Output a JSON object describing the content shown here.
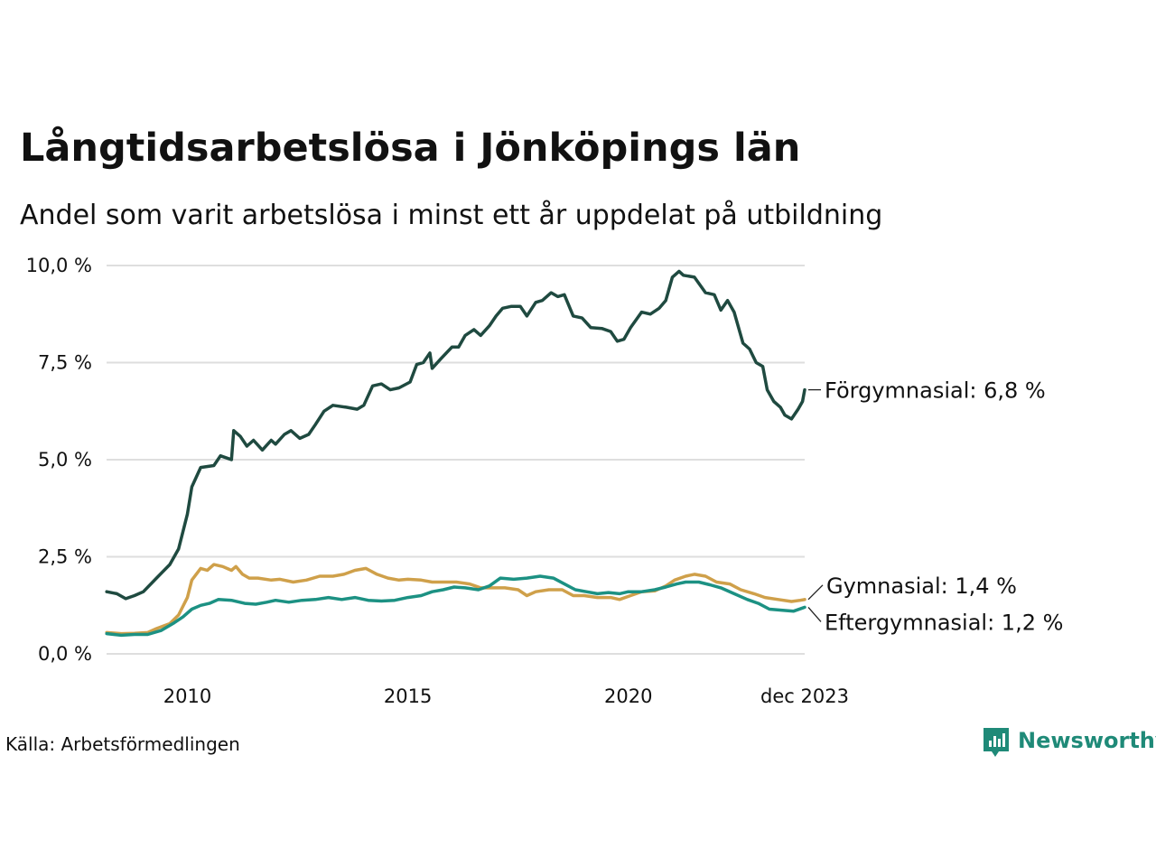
{
  "chart_data": {
    "type": "line",
    "title": "Långtidsarbetslösa i Jönköpings län",
    "subtitle": "Andel som varit arbetslösa i minst ett år uppdelat på utbildning",
    "source": "Källa: Arbetsförmedlingen",
    "brand": "Newsworthy",
    "ylim": [
      0,
      10
    ],
    "xlim": [
      2008.1667,
      2024.0
    ],
    "yticks": [
      {
        "value": 10,
        "label": "10,0 %"
      },
      {
        "value": 7.5,
        "label": "7,5 %"
      },
      {
        "value": 5,
        "label": "5,0 %"
      },
      {
        "value": 2.5,
        "label": "2,5 %"
      },
      {
        "value": 0,
        "label": "0,0 %"
      }
    ],
    "xticks": [
      {
        "value": 2010,
        "label": "2010"
      },
      {
        "value": 2015,
        "label": "2015"
      },
      {
        "value": 2020,
        "label": "2020"
      },
      {
        "value": 2024,
        "label": "dec 2023"
      }
    ],
    "series": [
      {
        "name": "Förgymnasial",
        "end_label": "Förgymnasial: 6,8 %",
        "color": "#1f4a40",
        "points": [
          [
            2008.17,
            1.6
          ],
          [
            2008.4,
            1.55
          ],
          [
            2008.6,
            1.42
          ],
          [
            2008.8,
            1.5
          ],
          [
            2009.0,
            1.6
          ],
          [
            2009.3,
            1.95
          ],
          [
            2009.6,
            2.3
          ],
          [
            2009.8,
            2.7
          ],
          [
            2010.0,
            3.6
          ],
          [
            2010.1,
            4.3
          ],
          [
            2010.3,
            4.8
          ],
          [
            2010.6,
            4.85
          ],
          [
            2010.75,
            5.1
          ],
          [
            2011.0,
            5.0
          ],
          [
            2011.05,
            5.75
          ],
          [
            2011.2,
            5.6
          ],
          [
            2011.35,
            5.35
          ],
          [
            2011.5,
            5.5
          ],
          [
            2011.7,
            5.25
          ],
          [
            2011.9,
            5.5
          ],
          [
            2012.0,
            5.4
          ],
          [
            2012.2,
            5.65
          ],
          [
            2012.35,
            5.75
          ],
          [
            2012.55,
            5.55
          ],
          [
            2012.75,
            5.65
          ],
          [
            2012.9,
            5.9
          ],
          [
            2013.1,
            6.25
          ],
          [
            2013.3,
            6.4
          ],
          [
            2013.6,
            6.35
          ],
          [
            2013.85,
            6.3
          ],
          [
            2014.0,
            6.4
          ],
          [
            2014.2,
            6.9
          ],
          [
            2014.4,
            6.95
          ],
          [
            2014.6,
            6.8
          ],
          [
            2014.8,
            6.85
          ],
          [
            2015.05,
            7.0
          ],
          [
            2015.2,
            7.45
          ],
          [
            2015.35,
            7.5
          ],
          [
            2015.5,
            7.75
          ],
          [
            2015.55,
            7.35
          ],
          [
            2015.75,
            7.6
          ],
          [
            2016.0,
            7.9
          ],
          [
            2016.15,
            7.9
          ],
          [
            2016.3,
            8.2
          ],
          [
            2016.5,
            8.35
          ],
          [
            2016.65,
            8.2
          ],
          [
            2016.85,
            8.45
          ],
          [
            2017.0,
            8.7
          ],
          [
            2017.15,
            8.9
          ],
          [
            2017.35,
            8.95
          ],
          [
            2017.55,
            8.95
          ],
          [
            2017.7,
            8.7
          ],
          [
            2017.9,
            9.05
          ],
          [
            2018.05,
            9.1
          ],
          [
            2018.25,
            9.3
          ],
          [
            2018.4,
            9.2
          ],
          [
            2018.55,
            9.25
          ],
          [
            2018.75,
            8.7
          ],
          [
            2018.95,
            8.65
          ],
          [
            2019.15,
            8.4
          ],
          [
            2019.4,
            8.38
          ],
          [
            2019.6,
            8.3
          ],
          [
            2019.75,
            8.05
          ],
          [
            2019.9,
            8.1
          ],
          [
            2020.05,
            8.4
          ],
          [
            2020.3,
            8.8
          ],
          [
            2020.5,
            8.75
          ],
          [
            2020.7,
            8.9
          ],
          [
            2020.85,
            9.1
          ],
          [
            2021.0,
            9.7
          ],
          [
            2021.15,
            9.85
          ],
          [
            2021.25,
            9.75
          ],
          [
            2021.5,
            9.7
          ],
          [
            2021.75,
            9.3
          ],
          [
            2021.95,
            9.25
          ],
          [
            2022.1,
            8.85
          ],
          [
            2022.25,
            9.1
          ],
          [
            2022.4,
            8.8
          ],
          [
            2022.6,
            8.0
          ],
          [
            2022.75,
            7.85
          ],
          [
            2022.9,
            7.5
          ],
          [
            2023.05,
            7.4
          ],
          [
            2023.15,
            6.8
          ],
          [
            2023.3,
            6.5
          ],
          [
            2023.45,
            6.35
          ],
          [
            2023.55,
            6.15
          ],
          [
            2023.7,
            6.05
          ],
          [
            2023.85,
            6.3
          ],
          [
            2023.95,
            6.5
          ],
          [
            2024.0,
            6.8
          ]
        ]
      },
      {
        "name": "Gymnasial",
        "end_label": "Gymnasial: 1,4 %",
        "color": "#cfa04a",
        "points": [
          [
            2008.17,
            0.55
          ],
          [
            2008.5,
            0.52
          ],
          [
            2008.8,
            0.53
          ],
          [
            2009.1,
            0.55
          ],
          [
            2009.3,
            0.65
          ],
          [
            2009.6,
            0.78
          ],
          [
            2009.8,
            1.0
          ],
          [
            2010.0,
            1.45
          ],
          [
            2010.1,
            1.9
          ],
          [
            2010.3,
            2.2
          ],
          [
            2010.45,
            2.15
          ],
          [
            2010.6,
            2.3
          ],
          [
            2010.8,
            2.25
          ],
          [
            2011.0,
            2.15
          ],
          [
            2011.1,
            2.25
          ],
          [
            2011.25,
            2.05
          ],
          [
            2011.4,
            1.95
          ],
          [
            2011.6,
            1.95
          ],
          [
            2011.9,
            1.9
          ],
          [
            2012.1,
            1.92
          ],
          [
            2012.4,
            1.85
          ],
          [
            2012.7,
            1.9
          ],
          [
            2013.0,
            2.0
          ],
          [
            2013.3,
            2.0
          ],
          [
            2013.55,
            2.05
          ],
          [
            2013.8,
            2.15
          ],
          [
            2014.05,
            2.2
          ],
          [
            2014.3,
            2.05
          ],
          [
            2014.55,
            1.95
          ],
          [
            2014.8,
            1.9
          ],
          [
            2015.0,
            1.92
          ],
          [
            2015.3,
            1.9
          ],
          [
            2015.55,
            1.85
          ],
          [
            2015.8,
            1.85
          ],
          [
            2016.1,
            1.85
          ],
          [
            2016.4,
            1.8
          ],
          [
            2016.65,
            1.7
          ],
          [
            2016.9,
            1.7
          ],
          [
            2017.2,
            1.7
          ],
          [
            2017.5,
            1.65
          ],
          [
            2017.7,
            1.5
          ],
          [
            2017.9,
            1.6
          ],
          [
            2018.2,
            1.65
          ],
          [
            2018.5,
            1.65
          ],
          [
            2018.75,
            1.5
          ],
          [
            2019.0,
            1.5
          ],
          [
            2019.3,
            1.45
          ],
          [
            2019.6,
            1.45
          ],
          [
            2019.8,
            1.4
          ],
          [
            2020.05,
            1.5
          ],
          [
            2020.3,
            1.6
          ],
          [
            2020.6,
            1.62
          ],
          [
            2020.85,
            1.75
          ],
          [
            2021.05,
            1.9
          ],
          [
            2021.3,
            2.0
          ],
          [
            2021.5,
            2.05
          ],
          [
            2021.75,
            2.0
          ],
          [
            2022.0,
            1.85
          ],
          [
            2022.3,
            1.8
          ],
          [
            2022.55,
            1.65
          ],
          [
            2022.85,
            1.55
          ],
          [
            2023.1,
            1.45
          ],
          [
            2023.4,
            1.4
          ],
          [
            2023.7,
            1.35
          ],
          [
            2023.9,
            1.38
          ],
          [
            2024.0,
            1.4
          ]
        ]
      },
      {
        "name": "Eftergymnasial",
        "end_label": "Eftergymnasial: 1,2 %",
        "color": "#1c9183",
        "points": [
          [
            2008.17,
            0.52
          ],
          [
            2008.5,
            0.48
          ],
          [
            2008.8,
            0.5
          ],
          [
            2009.1,
            0.5
          ],
          [
            2009.4,
            0.6
          ],
          [
            2009.7,
            0.8
          ],
          [
            2009.9,
            0.95
          ],
          [
            2010.1,
            1.15
          ],
          [
            2010.3,
            1.25
          ],
          [
            2010.5,
            1.3
          ],
          [
            2010.7,
            1.4
          ],
          [
            2011.0,
            1.38
          ],
          [
            2011.3,
            1.3
          ],
          [
            2011.55,
            1.28
          ],
          [
            2011.8,
            1.33
          ],
          [
            2012.0,
            1.38
          ],
          [
            2012.3,
            1.33
          ],
          [
            2012.6,
            1.38
          ],
          [
            2012.9,
            1.4
          ],
          [
            2013.2,
            1.45
          ],
          [
            2013.5,
            1.4
          ],
          [
            2013.8,
            1.45
          ],
          [
            2014.1,
            1.38
          ],
          [
            2014.4,
            1.36
          ],
          [
            2014.7,
            1.38
          ],
          [
            2015.0,
            1.45
          ],
          [
            2015.3,
            1.5
          ],
          [
            2015.55,
            1.6
          ],
          [
            2015.8,
            1.65
          ],
          [
            2016.05,
            1.72
          ],
          [
            2016.3,
            1.7
          ],
          [
            2016.6,
            1.65
          ],
          [
            2016.85,
            1.75
          ],
          [
            2017.1,
            1.95
          ],
          [
            2017.4,
            1.92
          ],
          [
            2017.7,
            1.95
          ],
          [
            2018.0,
            2.0
          ],
          [
            2018.3,
            1.95
          ],
          [
            2018.55,
            1.8
          ],
          [
            2018.8,
            1.65
          ],
          [
            2019.05,
            1.6
          ],
          [
            2019.3,
            1.55
          ],
          [
            2019.55,
            1.58
          ],
          [
            2019.8,
            1.55
          ],
          [
            2020.0,
            1.6
          ],
          [
            2020.3,
            1.6
          ],
          [
            2020.6,
            1.65
          ],
          [
            2020.85,
            1.72
          ],
          [
            2021.1,
            1.8
          ],
          [
            2021.3,
            1.85
          ],
          [
            2021.6,
            1.85
          ],
          [
            2021.85,
            1.78
          ],
          [
            2022.1,
            1.7
          ],
          [
            2022.4,
            1.55
          ],
          [
            2022.7,
            1.4
          ],
          [
            2022.95,
            1.3
          ],
          [
            2023.2,
            1.15
          ],
          [
            2023.5,
            1.12
          ],
          [
            2023.75,
            1.1
          ],
          [
            2024.0,
            1.2
          ]
        ]
      }
    ]
  }
}
